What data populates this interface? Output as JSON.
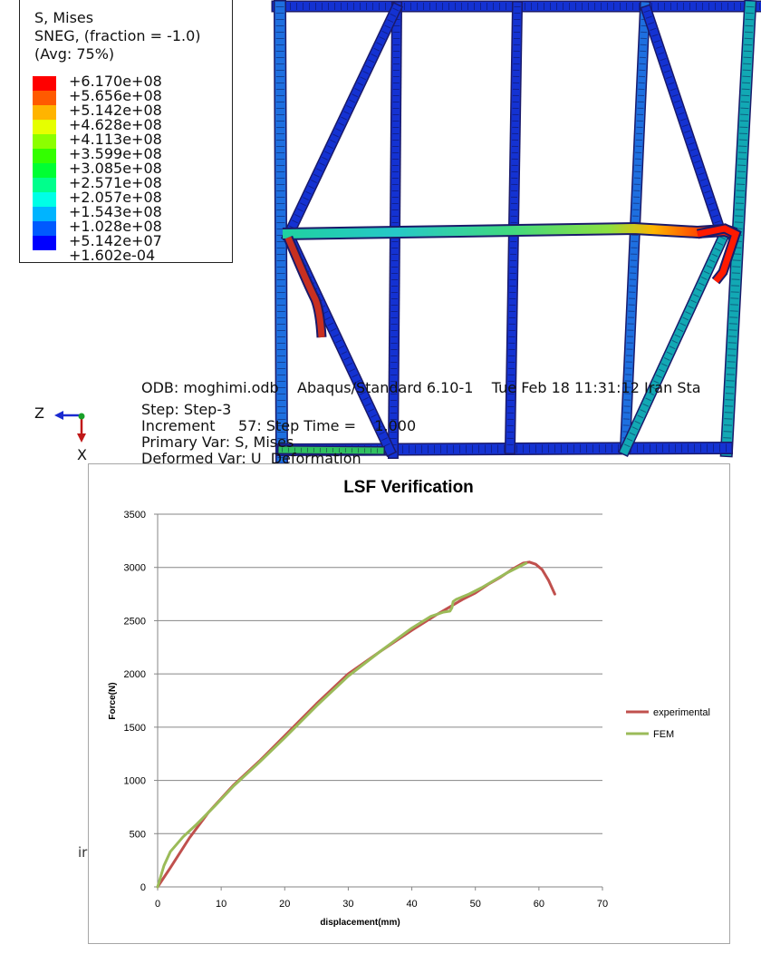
{
  "contour_legend": {
    "line1": "S, Mises",
    "line2": "SNEG, (fraction = -1.0)",
    "line3": "(Avg: 75%)",
    "values": [
      "+6.170e+08",
      "+5.656e+08",
      "+5.142e+08",
      "+4.628e+08",
      "+4.113e+08",
      "+3.599e+08",
      "+3.085e+08",
      "+2.571e+08",
      "+2.057e+08",
      "+1.543e+08",
      "+1.028e+08",
      "+5.142e+07",
      "+1.602e-04"
    ],
    "colors": [
      "#ff0000",
      "#ff5a00",
      "#ffb400",
      "#e6ff00",
      "#8cff00",
      "#33ff00",
      "#00ff33",
      "#00ff8c",
      "#00ffe6",
      "#00b4ff",
      "#005aff",
      "#0000ff"
    ]
  },
  "odb_info": {
    "line1": "ODB: moghimi.odb    Abaqus/Standard 6.10-1    Tue Feb 18 11:31:12 Iran Sta",
    "line2": "Step: Step-3",
    "line3": "Increment     57: Step Time =    1.000",
    "line4": "Primary Var: S, Mises",
    "line5": "Deformed Var: U  Deformation"
  },
  "triad": {
    "axis_z": "Z",
    "axis_x": "X"
  },
  "stray_text": "ir",
  "chart_data": {
    "type": "line",
    "title": "LSF Verification",
    "xlabel": "displacement(mm)",
    "ylabel": "Force(N)",
    "xlim": [
      0,
      70
    ],
    "ylim": [
      0,
      3500
    ],
    "xticks": [
      0,
      10,
      20,
      30,
      40,
      50,
      60,
      70
    ],
    "yticks": [
      0,
      500,
      1000,
      1500,
      2000,
      2500,
      3000,
      3500
    ],
    "grid": "horizontal",
    "legend_position": "right",
    "series": [
      {
        "name": "experimental",
        "color": "#c0504d",
        "x": [
          0,
          2,
          5,
          8,
          12,
          16,
          20,
          25,
          30,
          35,
          40,
          44,
          46,
          48,
          50,
          52,
          54,
          56,
          57.5,
          58.5,
          59.5,
          60.5,
          61.5,
          62.5
        ],
        "y": [
          0,
          180,
          460,
          700,
          960,
          1180,
          1420,
          1720,
          2000,
          2210,
          2410,
          2560,
          2630,
          2700,
          2760,
          2840,
          2910,
          2990,
          3040,
          3050,
          3030,
          2980,
          2880,
          2750
        ]
      },
      {
        "name": "FEM",
        "color": "#9bbb59",
        "x": [
          0,
          1,
          2,
          4,
          6,
          9,
          12,
          16,
          20,
          25,
          30,
          35,
          40,
          43,
          45,
          46,
          46.3,
          46.5,
          47,
          49,
          51,
          53,
          55,
          57,
          58
        ],
        "y": [
          0,
          200,
          330,
          470,
          580,
          760,
          950,
          1170,
          1400,
          1700,
          1980,
          2210,
          2430,
          2540,
          2580,
          2590,
          2620,
          2680,
          2700,
          2750,
          2810,
          2880,
          2950,
          3010,
          3040
        ]
      }
    ]
  }
}
